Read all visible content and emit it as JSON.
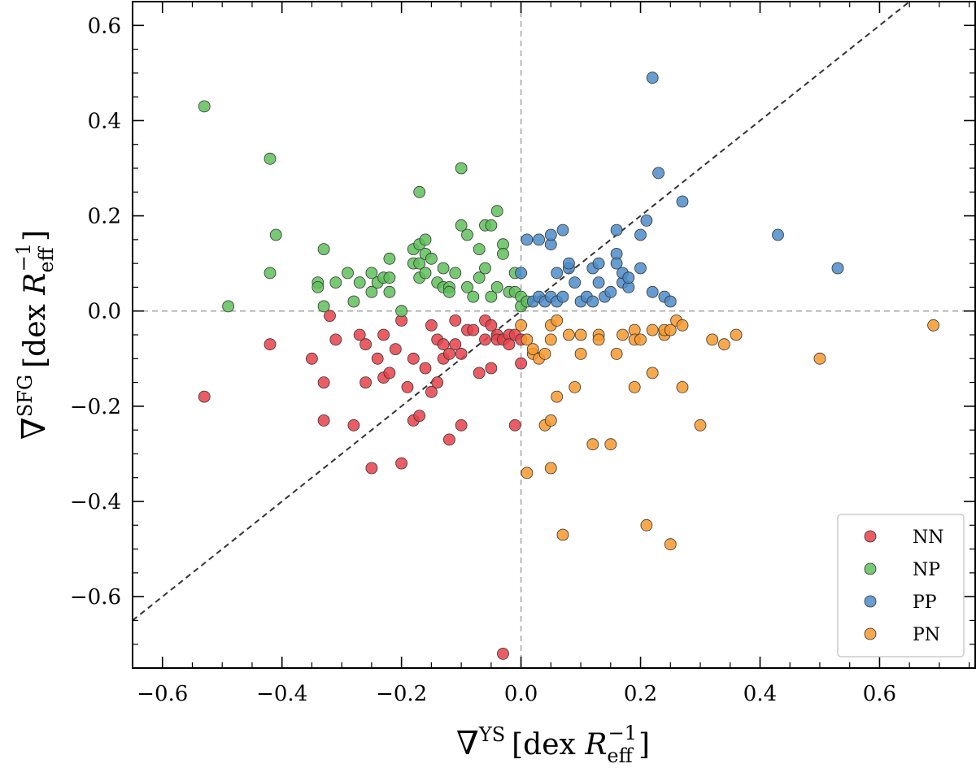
{
  "chart_data": {
    "type": "scatter",
    "title": "",
    "xlabel": "∇YS [dex Reff−1]",
    "ylabel": "∇SFG [dex Reff−1]",
    "xlabel_parts": {
      "nabla": "∇",
      "sup": "YS",
      "bracket_open": "[dex ",
      "r": "R",
      "sub": "eff",
      "exp": "−1",
      "bracket_close": "]"
    },
    "ylabel_parts": {
      "nabla": "∇",
      "sup": "SFG",
      "bracket_open": "[dex ",
      "r": "R",
      "sub": "eff",
      "exp": "−1",
      "bracket_close": "]"
    },
    "xlim": [
      -0.65,
      0.76
    ],
    "ylim": [
      -0.75,
      0.65
    ],
    "xticks": [
      -0.6,
      -0.4,
      -0.2,
      0.0,
      0.2,
      0.4,
      0.6
    ],
    "yticks": [
      -0.6,
      -0.4,
      -0.2,
      0.0,
      0.2,
      0.4,
      0.6
    ],
    "xtick_labels": [
      "−0.6",
      "−0.4",
      "−0.2",
      "0.0",
      "0.2",
      "0.4",
      "0.6"
    ],
    "ytick_labels": [
      "−0.6",
      "−0.4",
      "−0.2",
      "0.0",
      "0.2",
      "0.4",
      "0.6"
    ],
    "reference_lines": [
      {
        "type": "one-to-one",
        "style": "dashed",
        "color": "#333333"
      },
      {
        "type": "x=0",
        "style": "dashed",
        "color": "#aaaaaa"
      },
      {
        "type": "y=0",
        "style": "dashed",
        "color": "#aaaaaa"
      }
    ],
    "legend_position": "bottom-right",
    "series": [
      {
        "name": "NN",
        "color": "#e8414a",
        "points": [
          [
            -0.53,
            -0.18
          ],
          [
            -0.42,
            -0.07
          ],
          [
            -0.35,
            -0.1
          ],
          [
            -0.33,
            -0.15
          ],
          [
            -0.33,
            -0.23
          ],
          [
            -0.32,
            -0.01
          ],
          [
            -0.31,
            -0.06
          ],
          [
            -0.28,
            -0.24
          ],
          [
            -0.27,
            -0.05
          ],
          [
            -0.26,
            -0.07
          ],
          [
            -0.26,
            -0.15
          ],
          [
            -0.25,
            -0.33
          ],
          [
            -0.24,
            -0.1
          ],
          [
            -0.23,
            -0.14
          ],
          [
            -0.23,
            -0.05
          ],
          [
            -0.22,
            -0.13
          ],
          [
            -0.21,
            -0.08
          ],
          [
            -0.2,
            -0.02
          ],
          [
            -0.2,
            -0.32
          ],
          [
            -0.19,
            -0.16
          ],
          [
            -0.18,
            -0.1
          ],
          [
            -0.18,
            -0.23
          ],
          [
            -0.17,
            -0.22
          ],
          [
            -0.16,
            -0.12
          ],
          [
            -0.15,
            -0.03
          ],
          [
            -0.15,
            -0.17
          ],
          [
            -0.14,
            -0.15
          ],
          [
            -0.14,
            -0.06
          ],
          [
            -0.13,
            -0.07
          ],
          [
            -0.13,
            -0.1
          ],
          [
            -0.12,
            -0.09
          ],
          [
            -0.12,
            -0.27
          ],
          [
            -0.11,
            -0.02
          ],
          [
            -0.11,
            -0.07
          ],
          [
            -0.1,
            -0.24
          ],
          [
            -0.1,
            -0.09
          ],
          [
            -0.09,
            -0.04
          ],
          [
            -0.08,
            -0.04
          ],
          [
            -0.07,
            -0.13
          ],
          [
            -0.06,
            -0.02
          ],
          [
            -0.06,
            -0.06
          ],
          [
            -0.05,
            -0.12
          ],
          [
            -0.05,
            -0.03
          ],
          [
            -0.04,
            -0.05
          ],
          [
            -0.04,
            -0.06
          ],
          [
            -0.03,
            -0.06
          ],
          [
            -0.03,
            -0.72
          ],
          [
            -0.02,
            -0.05
          ],
          [
            -0.02,
            -0.07
          ],
          [
            -0.01,
            -0.05
          ],
          [
            -0.01,
            -0.24
          ],
          [
            0.0,
            -0.06
          ],
          [
            0.0,
            -0.11
          ]
        ]
      },
      {
        "name": "NP",
        "color": "#5fbf5b",
        "points": [
          [
            -0.53,
            0.43
          ],
          [
            -0.49,
            0.01
          ],
          [
            -0.42,
            0.32
          ],
          [
            -0.42,
            0.08
          ],
          [
            -0.41,
            0.16
          ],
          [
            -0.34,
            0.06
          ],
          [
            -0.34,
            0.05
          ],
          [
            -0.33,
            0.13
          ],
          [
            -0.33,
            0.01
          ],
          [
            -0.31,
            0.06
          ],
          [
            -0.29,
            0.08
          ],
          [
            -0.28,
            0.02
          ],
          [
            -0.27,
            0.06
          ],
          [
            -0.25,
            0.04
          ],
          [
            -0.25,
            0.08
          ],
          [
            -0.24,
            0.06
          ],
          [
            -0.23,
            0.07
          ],
          [
            -0.22,
            0.07
          ],
          [
            -0.22,
            0.11
          ],
          [
            -0.22,
            0.04
          ],
          [
            -0.2,
            0.0
          ],
          [
            -0.18,
            0.1
          ],
          [
            -0.18,
            0.13
          ],
          [
            -0.17,
            0.14
          ],
          [
            -0.17,
            0.1
          ],
          [
            -0.17,
            0.07
          ],
          [
            -0.17,
            0.25
          ],
          [
            -0.16,
            0.12
          ],
          [
            -0.16,
            0.15
          ],
          [
            -0.16,
            0.08
          ],
          [
            -0.15,
            0.11
          ],
          [
            -0.14,
            0.06
          ],
          [
            -0.13,
            0.09
          ],
          [
            -0.13,
            0.05
          ],
          [
            -0.12,
            0.05
          ],
          [
            -0.12,
            0.04
          ],
          [
            -0.11,
            0.08
          ],
          [
            -0.1,
            0.3
          ],
          [
            -0.1,
            0.18
          ],
          [
            -0.09,
            0.16
          ],
          [
            -0.09,
            0.05
          ],
          [
            -0.08,
            0.03
          ],
          [
            -0.07,
            0.13
          ],
          [
            -0.07,
            0.07
          ],
          [
            -0.06,
            0.18
          ],
          [
            -0.06,
            0.09
          ],
          [
            -0.05,
            0.03
          ],
          [
            -0.05,
            0.18
          ],
          [
            -0.04,
            0.21
          ],
          [
            -0.04,
            0.05
          ],
          [
            -0.03,
            0.14
          ],
          [
            -0.03,
            0.12
          ],
          [
            -0.02,
            0.04
          ],
          [
            -0.01,
            0.08
          ],
          [
            -0.01,
            0.04
          ],
          [
            0.0,
            0.03
          ],
          [
            0.0,
            0.01
          ],
          [
            0.01,
            0.02
          ]
        ]
      },
      {
        "name": "PP",
        "color": "#4c8cc8",
        "points": [
          [
            0.0,
            0.08
          ],
          [
            0.01,
            0.15
          ],
          [
            0.02,
            0.02
          ],
          [
            0.03,
            0.15
          ],
          [
            0.03,
            0.03
          ],
          [
            0.04,
            0.02
          ],
          [
            0.05,
            0.03
          ],
          [
            0.05,
            0.14
          ],
          [
            0.05,
            0.16
          ],
          [
            0.06,
            0.02
          ],
          [
            0.06,
            0.08
          ],
          [
            0.07,
            0.17
          ],
          [
            0.07,
            0.03
          ],
          [
            0.08,
            0.09
          ],
          [
            0.08,
            0.1
          ],
          [
            0.09,
            0.06
          ],
          [
            0.1,
            0.02
          ],
          [
            0.11,
            0.03
          ],
          [
            0.12,
            0.02
          ],
          [
            0.12,
            0.09
          ],
          [
            0.13,
            0.1
          ],
          [
            0.13,
            0.06
          ],
          [
            0.14,
            0.03
          ],
          [
            0.15,
            0.04
          ],
          [
            0.16,
            0.12
          ],
          [
            0.16,
            0.1
          ],
          [
            0.16,
            0.17
          ],
          [
            0.17,
            0.06
          ],
          [
            0.17,
            0.08
          ],
          [
            0.18,
            0.05
          ],
          [
            0.18,
            0.07
          ],
          [
            0.2,
            0.16
          ],
          [
            0.2,
            0.09
          ],
          [
            0.21,
            0.19
          ],
          [
            0.22,
            0.04
          ],
          [
            0.22,
            0.49
          ],
          [
            0.23,
            0.29
          ],
          [
            0.24,
            0.03
          ],
          [
            0.25,
            0.02
          ],
          [
            0.27,
            0.23
          ],
          [
            0.43,
            0.16
          ],
          [
            0.53,
            0.09
          ]
        ]
      },
      {
        "name": "PN",
        "color": "#f6992e",
        "points": [
          [
            0.0,
            -0.03
          ],
          [
            0.01,
            -0.06
          ],
          [
            0.01,
            -0.34
          ],
          [
            0.02,
            -0.09
          ],
          [
            0.02,
            -0.08
          ],
          [
            0.03,
            -0.1
          ],
          [
            0.04,
            -0.09
          ],
          [
            0.04,
            -0.24
          ],
          [
            0.05,
            -0.03
          ],
          [
            0.05,
            -0.06
          ],
          [
            0.05,
            -0.33
          ],
          [
            0.05,
            -0.23
          ],
          [
            0.06,
            -0.02
          ],
          [
            0.06,
            -0.18
          ],
          [
            0.07,
            -0.47
          ],
          [
            0.08,
            -0.05
          ],
          [
            0.09,
            -0.16
          ],
          [
            0.1,
            -0.05
          ],
          [
            0.1,
            -0.09
          ],
          [
            0.12,
            -0.28
          ],
          [
            0.13,
            -0.05
          ],
          [
            0.13,
            -0.06
          ],
          [
            0.15,
            -0.28
          ],
          [
            0.16,
            -0.09
          ],
          [
            0.17,
            -0.05
          ],
          [
            0.19,
            -0.16
          ],
          [
            0.19,
            -0.04
          ],
          [
            0.19,
            -0.06
          ],
          [
            0.2,
            -0.06
          ],
          [
            0.21,
            -0.45
          ],
          [
            0.22,
            -0.13
          ],
          [
            0.22,
            -0.04
          ],
          [
            0.24,
            -0.05
          ],
          [
            0.24,
            -0.04
          ],
          [
            0.25,
            -0.49
          ],
          [
            0.25,
            -0.04
          ],
          [
            0.26,
            -0.02
          ],
          [
            0.27,
            -0.16
          ],
          [
            0.27,
            -0.03
          ],
          [
            0.3,
            -0.24
          ],
          [
            0.32,
            -0.06
          ],
          [
            0.34,
            -0.07
          ],
          [
            0.36,
            -0.05
          ],
          [
            0.5,
            -0.1
          ],
          [
            0.69,
            -0.03
          ]
        ]
      }
    ]
  }
}
